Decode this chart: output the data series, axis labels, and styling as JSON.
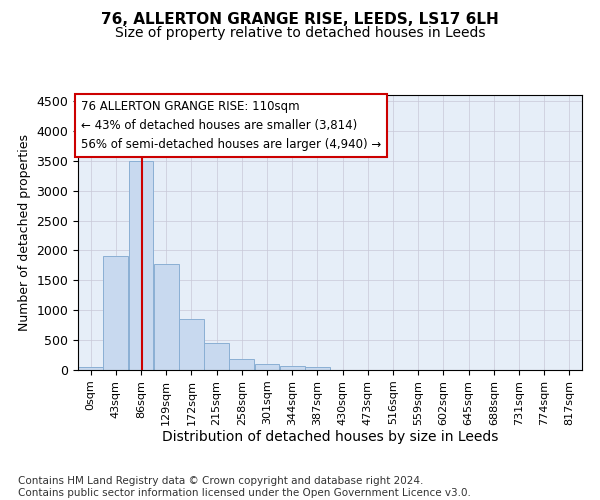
{
  "title": "76, ALLERTON GRANGE RISE, LEEDS, LS17 6LH",
  "subtitle": "Size of property relative to detached houses in Leeds",
  "xlabel": "Distribution of detached houses by size in Leeds",
  "ylabel": "Number of detached properties",
  "bar_color": "#c8d9ef",
  "bar_edge_color": "#8aafd4",
  "grid_color": "#c8c8d8",
  "bg_color": "#e6eef8",
  "property_line_x": 110,
  "property_line_color": "#cc0000",
  "annotation_text": "76 ALLERTON GRANGE RISE: 110sqm\n← 43% of detached houses are smaller (3,814)\n56% of semi-detached houses are larger (4,940) →",
  "annotation_box_edgecolor": "#cc0000",
  "bin_edges": [
    0,
    43,
    86,
    129,
    172,
    215,
    258,
    301,
    344,
    387,
    430,
    473,
    516,
    559,
    602,
    645,
    688,
    731,
    774,
    817,
    860
  ],
  "bar_heights": [
    50,
    1900,
    3500,
    1780,
    860,
    460,
    180,
    100,
    60,
    50,
    0,
    0,
    0,
    0,
    0,
    0,
    0,
    0,
    0,
    0
  ],
  "ylim": [
    0,
    4600
  ],
  "yticks": [
    0,
    500,
    1000,
    1500,
    2000,
    2500,
    3000,
    3500,
    4000,
    4500
  ],
  "footnote": "Contains HM Land Registry data © Crown copyright and database right 2024.\nContains public sector information licensed under the Open Government Licence v3.0.",
  "footnote_fontsize": 7.5,
  "title_fontsize": 11,
  "subtitle_fontsize": 10,
  "ylabel_fontsize": 9,
  "xlabel_fontsize": 10,
  "tick_fontsize": 8,
  "ytick_fontsize": 9
}
